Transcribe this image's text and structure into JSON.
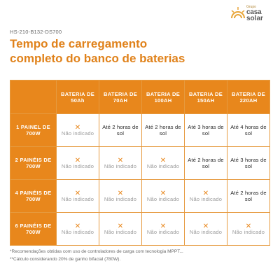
{
  "logo": {
    "small": "Grupo",
    "line1": "casa",
    "line2": "solar"
  },
  "code": "HS-210-B132-DS700",
  "title_line1": "Tempo de carregamento",
  "title_line2": "completo do banco de baterias",
  "columns": [
    "BATERIA DE 50Ah",
    "BATERIA DE 70AH",
    "BATERIA DE 100AH",
    "BATERIA DE 150AH",
    "BATERIA DE 220AH"
  ],
  "rows": [
    {
      "label": "1 PAINEL DE 700W",
      "cells": [
        {
          "na": true,
          "text": "Não indicado"
        },
        {
          "na": false,
          "text": "Até 2 horas de sol"
        },
        {
          "na": false,
          "text": "Até 2 horas de sol"
        },
        {
          "na": false,
          "text": "Até 3 horas de sol"
        },
        {
          "na": false,
          "text": "Até 4 horas de sol"
        }
      ]
    },
    {
      "label": "2 PAINÉIS DE 700W",
      "cells": [
        {
          "na": true,
          "text": "Não indicado"
        },
        {
          "na": true,
          "text": "Não indicado"
        },
        {
          "na": true,
          "text": "Não indicado"
        },
        {
          "na": false,
          "text": "Até 2 horas de sol"
        },
        {
          "na": false,
          "text": "Até 3 horas de sol"
        }
      ]
    },
    {
      "label": "4 PAINÉIS DE 700W",
      "cells": [
        {
          "na": true,
          "text": "Não indicado"
        },
        {
          "na": true,
          "text": "Não indicado"
        },
        {
          "na": true,
          "text": "Não indicado"
        },
        {
          "na": true,
          "text": "Não indicado"
        },
        {
          "na": false,
          "text": "Até 2 horas de sol"
        }
      ]
    },
    {
      "label": "6 PAINÉIS DE 700W",
      "cells": [
        {
          "na": true,
          "text": "Não indicado"
        },
        {
          "na": true,
          "text": "Não indicado"
        },
        {
          "na": true,
          "text": "Não indicado"
        },
        {
          "na": true,
          "text": "Não indicado"
        },
        {
          "na": true,
          "text": "Não indicado"
        }
      ]
    }
  ],
  "na_symbol": "✕",
  "footnotes": [
    "*Recomendações obtidas com uso de controladores de carga com tecnologia MPPT...",
    "**Cálculo considerando 20% de ganho bifacial (780W)."
  ],
  "colors": {
    "accent": "#e8871c",
    "title": "#e0821b",
    "muted": "#9a9a9a"
  }
}
